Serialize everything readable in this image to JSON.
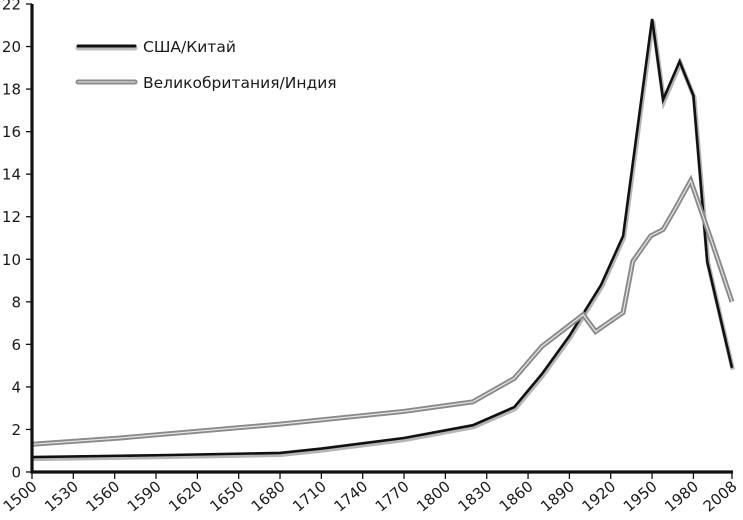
{
  "chart_data": {
    "type": "line",
    "title": "",
    "xlabel": "",
    "ylabel": "",
    "ylim": [
      0,
      22
    ],
    "xlim": [
      1500,
      2008
    ],
    "grid": false,
    "legend_position": "upper-left",
    "y_ticks": [
      0,
      2,
      4,
      6,
      8,
      10,
      12,
      14,
      16,
      18,
      20,
      22
    ],
    "x_ticks": [
      1500,
      1530,
      1560,
      1590,
      1620,
      1650,
      1680,
      1710,
      1740,
      1770,
      1800,
      1830,
      1860,
      1890,
      1920,
      1950,
      1980,
      2008
    ],
    "series": [
      {
        "name": "США/Китай",
        "color": "#111111",
        "points": [
          [
            1500,
            0.7
          ],
          [
            1600,
            0.8
          ],
          [
            1680,
            0.9
          ],
          [
            1710,
            1.1
          ],
          [
            1770,
            1.6
          ],
          [
            1820,
            2.2
          ],
          [
            1850,
            3.05
          ],
          [
            1870,
            4.6
          ],
          [
            1890,
            6.4
          ],
          [
            1913,
            8.8
          ],
          [
            1929,
            11.1
          ],
          [
            1950,
            21.3
          ],
          [
            1958,
            17.5
          ],
          [
            1970,
            19.3
          ],
          [
            1980,
            17.7
          ],
          [
            1990,
            9.9
          ],
          [
            2008,
            4.9
          ]
        ]
      },
      {
        "name": "Великобритания/Индия",
        "color": "#8a8a8a",
        "points": [
          [
            1500,
            1.3
          ],
          [
            1564,
            1.6
          ],
          [
            1680,
            2.25
          ],
          [
            1710,
            2.45
          ],
          [
            1770,
            2.85
          ],
          [
            1820,
            3.3
          ],
          [
            1850,
            4.4
          ],
          [
            1870,
            5.9
          ],
          [
            1900,
            7.4
          ],
          [
            1909,
            6.6
          ],
          [
            1929,
            7.5
          ],
          [
            1936,
            9.9
          ],
          [
            1949,
            11.1
          ],
          [
            1958,
            11.4
          ],
          [
            1967,
            12.4
          ],
          [
            1978,
            13.7
          ],
          [
            1994,
            10.7
          ],
          [
            2008,
            8.0
          ]
        ]
      }
    ]
  },
  "legend": {
    "items": [
      {
        "label": "США/Китай",
        "color": "#111111"
      },
      {
        "label": "Великобритания/Индия",
        "color": "#8a8a8a"
      }
    ]
  }
}
